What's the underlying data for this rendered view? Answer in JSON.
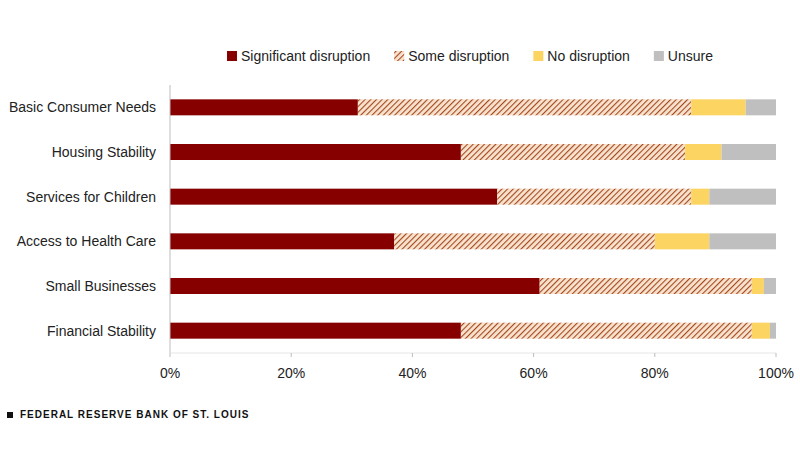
{
  "chart_data": {
    "type": "bar",
    "orientation": "horizontal",
    "stacked": true,
    "grid": false,
    "legend": "top",
    "categories": [
      "Basic Consumer Needs",
      "Housing Stability",
      "Services for Children",
      "Access to Health Care",
      "Small Businesses",
      "Financial Stability"
    ],
    "series": [
      {
        "name": "Significant disruption",
        "color": "#870000",
        "values": [
          31,
          48,
          54,
          37,
          61,
          48
        ]
      },
      {
        "name": "Some disruption",
        "color": "#a5481c",
        "line_style": "hatched",
        "values": [
          55,
          37,
          32,
          43,
          35,
          48
        ]
      },
      {
        "name": "No disruption",
        "color": "#fcd462",
        "values": [
          9,
          6,
          3,
          9,
          2,
          3
        ]
      },
      {
        "name": "Unsure",
        "color": "#bfbfbf",
        "values": [
          5,
          9,
          11,
          11,
          2,
          1
        ]
      }
    ],
    "xlim": [
      0,
      100
    ],
    "xticks": [
      {
        "value": 0,
        "label": "0%"
      },
      {
        "value": 20,
        "label": "20%"
      },
      {
        "value": 40,
        "label": "40%"
      },
      {
        "value": 60,
        "label": "60%"
      },
      {
        "value": 80,
        "label": "80%"
      },
      {
        "value": 100,
        "label": "100%"
      }
    ],
    "source": "FEDERAL RESERVE BANK OF ST. LOUIS"
  }
}
